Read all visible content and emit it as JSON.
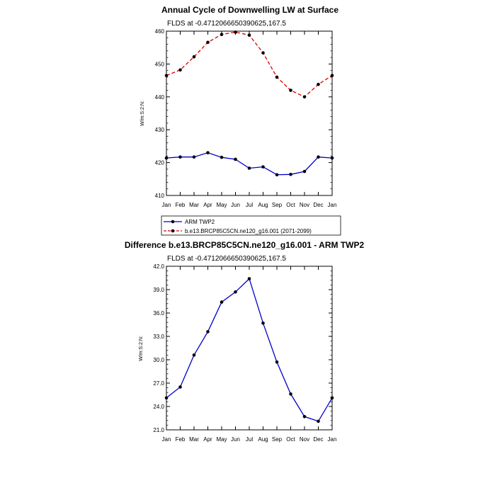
{
  "chart_data": [
    {
      "type": "line",
      "title": "Annual Cycle of Downwelling LW at Surface",
      "subtitle": "FLDS at -0.4712066650390625,167.5",
      "ylabel": "W/m:S:2:N:",
      "ylim": [
        410,
        460
      ],
      "yticks": [
        "410",
        "420",
        "430",
        "440",
        "450",
        "460"
      ],
      "categories": [
        "Jan",
        "Feb",
        "Mar",
        "Apr",
        "May",
        "Jun",
        "Jul",
        "Aug",
        "Sep",
        "Oct",
        "Nov",
        "Dec",
        "Jan"
      ],
      "series": [
        {
          "name": "ARM TWP2",
          "color": "#0000cc",
          "dash": "solid",
          "values": [
            421.4,
            421.7,
            421.7,
            423.0,
            421.6,
            421.0,
            418.3,
            418.7,
            416.3,
            416.4,
            417.3,
            421.7,
            421.4
          ]
        },
        {
          "name": "b.e13.BRCP85C5CN.ne120_g16.001 (2071-2099)",
          "color": "#dd0000",
          "dash": "dashed",
          "values": [
            446.5,
            448.2,
            452.2,
            456.6,
            459.0,
            459.7,
            458.8,
            453.4,
            446.0,
            442.0,
            440.0,
            443.8,
            446.5
          ]
        }
      ],
      "legend": "bottom"
    },
    {
      "type": "line",
      "title": "Difference b.e13.BRCP85C5CN.ne120_g16.001 - ARM TWP2",
      "subtitle": "FLDS at -0.4712066650390625,167.5",
      "ylabel": "W/m:S:2:N:",
      "ylim": [
        21.0,
        42.0
      ],
      "yticks": [
        "21.0",
        "24.0",
        "27.0",
        "30.0",
        "33.0",
        "36.0",
        "39.0",
        "42.0"
      ],
      "categories": [
        "Jan",
        "Feb",
        "Mar",
        "Apr",
        "May",
        "Jun",
        "Jul",
        "Aug",
        "Sep",
        "Oct",
        "Nov",
        "Dec",
        "Jan"
      ],
      "series": [
        {
          "color": "#0000cc",
          "dash": "solid",
          "values": [
            25.1,
            26.5,
            30.6,
            33.6,
            37.4,
            38.7,
            40.4,
            34.7,
            29.7,
            25.6,
            22.7,
            22.1,
            25.1
          ]
        }
      ]
    }
  ]
}
